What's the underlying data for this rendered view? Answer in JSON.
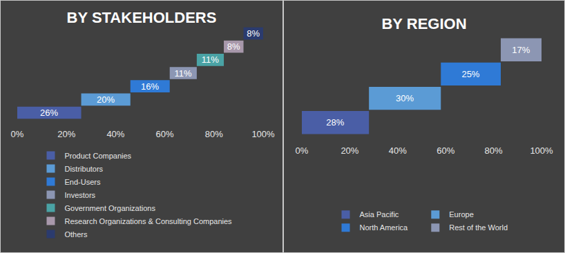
{
  "chart_data": [
    {
      "type": "bar",
      "title": "BY STAKEHOLDERS",
      "orientation": "horizontal",
      "stacked": true,
      "data_labels": true,
      "tick_labels": "x",
      "grid": false,
      "legend": "bottom",
      "xlim": [
        0,
        100
      ],
      "xticks": [
        {
          "value": 0,
          "label": "0%"
        },
        {
          "value": 20,
          "label": "20%"
        },
        {
          "value": 40,
          "label": "40%"
        },
        {
          "value": 60,
          "label": "60%"
        },
        {
          "value": 80,
          "label": "80%"
        },
        {
          "value": 100,
          "label": "100%"
        }
      ],
      "series": [
        {
          "name": "Product Companies",
          "color": "#4a5ea6",
          "values": [
            26
          ],
          "value_labels": [
            "26%"
          ]
        },
        {
          "name": "Distributors",
          "color": "#5b9bd5",
          "values": [
            20
          ],
          "value_labels": [
            "20%"
          ]
        },
        {
          "name": "End-Users",
          "color": "#2f7ad6",
          "values": [
            16
          ],
          "value_labels": [
            "16%"
          ]
        },
        {
          "name": "Investors",
          "color": "#8c96b3",
          "values": [
            11
          ],
          "value_labels": [
            "11%"
          ]
        },
        {
          "name": "Government Organizations",
          "color": "#4aa3a5",
          "values": [
            11
          ],
          "value_labels": [
            "11%"
          ]
        },
        {
          "name": "Research Organizations & Consulting Companies",
          "color": "#a898ab",
          "values": [
            8
          ],
          "value_labels": [
            "8%"
          ]
        },
        {
          "name": "Others",
          "color": "#2b3b6e",
          "values": [
            8
          ],
          "value_labels": [
            "8%"
          ]
        }
      ]
    },
    {
      "type": "bar",
      "title": "BY REGION",
      "orientation": "horizontal",
      "stacked": true,
      "data_labels": true,
      "tick_labels": "x",
      "grid": false,
      "legend": "bottom",
      "xlim": [
        0,
        100
      ],
      "xticks": [
        {
          "value": 0,
          "label": "0%"
        },
        {
          "value": 20,
          "label": "20%"
        },
        {
          "value": 40,
          "label": "40%"
        },
        {
          "value": 60,
          "label": "60%"
        },
        {
          "value": 80,
          "label": "80%"
        },
        {
          "value": 100,
          "label": "100%"
        }
      ],
      "series": [
        {
          "name": "Asia Pacific",
          "color": "#4a5ea6",
          "values": [
            28
          ],
          "value_labels": [
            "28%"
          ]
        },
        {
          "name": "Europe",
          "color": "#5b9bd5",
          "values": [
            30
          ],
          "value_labels": [
            "30%"
          ]
        },
        {
          "name": "North America",
          "color": "#2f7ad6",
          "values": [
            25
          ],
          "value_labels": [
            "25%"
          ]
        },
        {
          "name": "Rest of the World",
          "color": "#8c96b3",
          "values": [
            17
          ],
          "value_labels": [
            "17%"
          ]
        }
      ]
    }
  ]
}
